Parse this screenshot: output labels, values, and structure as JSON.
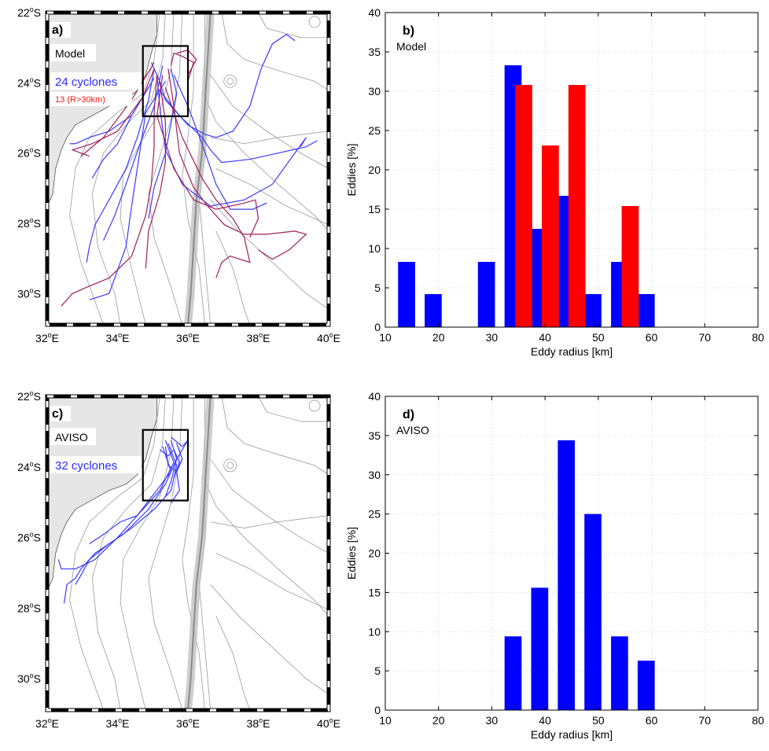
{
  "maps": [
    {
      "panel_label": "a)",
      "dataset": "Model",
      "legend": [
        {
          "text": "24 cyclones",
          "color": "#2b2bff"
        },
        {
          "text": "13 (R>30km)",
          "color": "#ff1a1a"
        }
      ],
      "lat_ticks": [
        "22",
        "24",
        "26",
        "28",
        "30"
      ],
      "lon_ticks": [
        "32",
        "34",
        "36",
        "38",
        "40"
      ],
      "lat_hemi": "S",
      "lon_hemi": "E",
      "deg_sym": "o",
      "colors": {
        "blue": "#3a3aff",
        "red": "#a0205a",
        "land": "#e6e6e6",
        "contour": "#9a9a9a"
      }
    },
    {
      "panel_label": "c)",
      "dataset": "AVISO",
      "legend": [
        {
          "text": "32 cyclones",
          "color": "#2b2bff"
        }
      ],
      "lat_ticks": [
        "22",
        "24",
        "26",
        "28",
        "30"
      ],
      "lon_ticks": [
        "32",
        "34",
        "36",
        "38",
        "40"
      ],
      "lat_hemi": "S",
      "lon_hemi": "E",
      "deg_sym": "o",
      "colors": {
        "blue": "#3a3aff",
        "land": "#e6e6e6",
        "contour": "#9a9a9a"
      }
    }
  ],
  "chart_data": [
    {
      "type": "bar",
      "panel_label": "b)",
      "subtitle": "Model",
      "xlabel": "Eddy radius  [km]",
      "ylabel": "Eddies [%]",
      "xlim": [
        10,
        80
      ],
      "ylim": [
        0,
        40
      ],
      "xticks": [
        10,
        20,
        30,
        40,
        50,
        60,
        70,
        80
      ],
      "yticks": [
        0,
        5,
        10,
        15,
        20,
        25,
        30,
        35,
        40
      ],
      "grid": true,
      "series": [
        {
          "color": "#0000ff",
          "x": [
            14,
            19,
            29,
            34,
            39,
            44,
            49,
            54,
            59
          ],
          "values": [
            8.3,
            4.2,
            8.3,
            33.3,
            12.5,
            16.7,
            4.2,
            8.3,
            4.2
          ]
        },
        {
          "color": "#ff0000",
          "x": [
            36,
            41,
            46,
            56
          ],
          "values": [
            30.8,
            23.1,
            30.8,
            15.4
          ]
        }
      ]
    },
    {
      "type": "bar",
      "panel_label": "d)",
      "subtitle": "AVISO",
      "xlabel": "Eddy radius  [km]",
      "ylabel": "Eddies [%]",
      "xlim": [
        10,
        80
      ],
      "ylim": [
        0,
        40
      ],
      "xticks": [
        10,
        20,
        30,
        40,
        50,
        60,
        70,
        80
      ],
      "yticks": [
        0,
        5,
        10,
        15,
        20,
        25,
        30,
        35,
        40
      ],
      "grid": true,
      "series": [
        {
          "color": "#0000ff",
          "x": [
            34,
            39,
            44,
            49,
            54,
            59
          ],
          "values": [
            9.4,
            15.6,
            34.4,
            25.0,
            9.4,
            6.3
          ]
        }
      ]
    }
  ]
}
